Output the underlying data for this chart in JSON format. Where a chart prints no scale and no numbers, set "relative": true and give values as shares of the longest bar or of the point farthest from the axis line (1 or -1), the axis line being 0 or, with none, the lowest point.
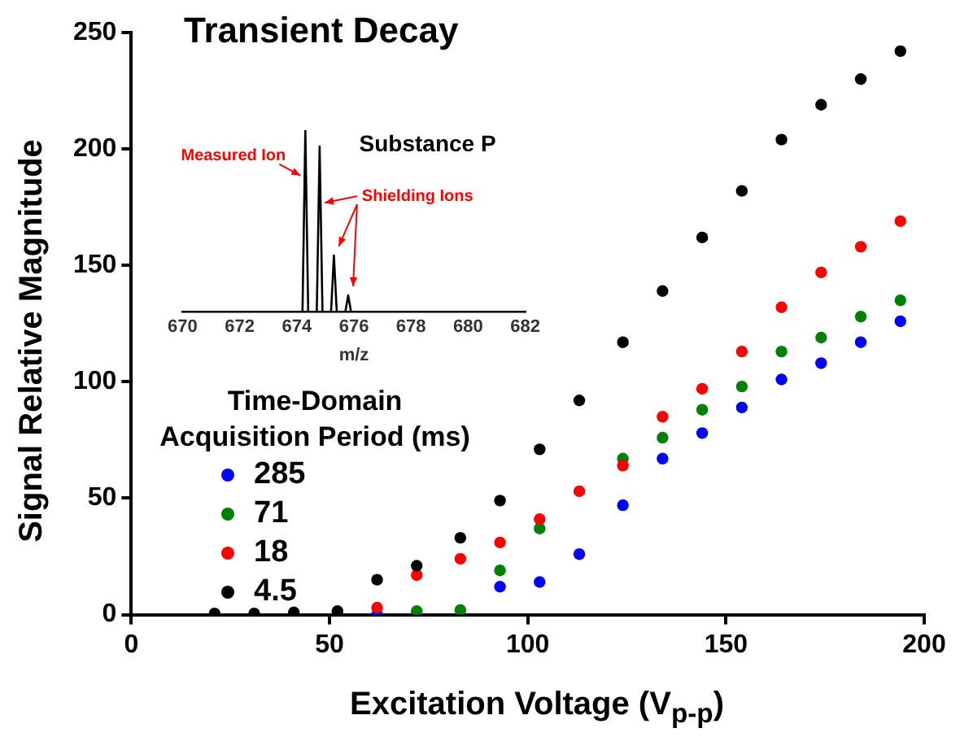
{
  "chart_data": [
    {
      "type": "scatter",
      "title": "Transient Decay",
      "xlabel": "Excitation Voltage (V$_{p-p}$)",
      "ylabel": "Signal Relative Magnitude",
      "legend_title": "Time-Domain Acquisition Period (ms)",
      "legend": "left",
      "marker": "circle",
      "grid": false,
      "x": [
        21,
        31,
        41,
        52,
        62,
        72,
        83,
        93,
        103,
        113,
        124,
        134,
        144,
        154,
        164,
        174,
        184,
        194
      ],
      "xlim": [
        0,
        200
      ],
      "xticks": [
        0,
        50,
        100,
        150,
        200
      ],
      "ylim": [
        0,
        250
      ],
      "yticks": [
        0,
        50,
        100,
        150,
        200,
        250
      ],
      "series": [
        {
          "name": "285",
          "color": "#0000ff",
          "values": [
            null,
            null,
            null,
            null,
            0,
            0,
            null,
            12,
            14,
            26,
            47,
            67,
            78,
            89,
            101,
            108,
            117,
            126
          ]
        },
        {
          "name": "71",
          "color": "#008000",
          "values": [
            null,
            null,
            null,
            null,
            null,
            1.5,
            2,
            19,
            37,
            null,
            67,
            76,
            88,
            98,
            113,
            119,
            128,
            135
          ]
        },
        {
          "name": "18",
          "color": "#ff0000",
          "values": [
            null,
            null,
            null,
            null,
            3,
            17,
            24,
            31,
            41,
            53,
            64,
            85,
            97,
            113,
            132,
            147,
            158,
            169
          ]
        },
        {
          "name": "4.5",
          "color": "#000000",
          "values": [
            0.5,
            0.5,
            1,
            1.5,
            15,
            21,
            33,
            49,
            71,
            92,
            117,
            139,
            162,
            182,
            204,
            219,
            230,
            242
          ]
        }
      ]
    },
    {
      "type": "line",
      "title": "Substance P",
      "xlabel": "m/z",
      "relative": true,
      "tick_labels": "x",
      "marker": "none",
      "grid": false,
      "legend": false,
      "xlim": [
        670,
        682
      ],
      "xticks": [
        670,
        672,
        674,
        676,
        678,
        680,
        682
      ],
      "series": [
        {
          "color": "#000000",
          "x": [
            670,
            674.2,
            674.3,
            674.4,
            674.7,
            674.8,
            674.9,
            675.2,
            675.3,
            675.4,
            675.7,
            675.8,
            675.9,
            682
          ],
          "values": [
            0,
            0,
            1,
            0,
            0,
            0.91,
            0,
            0,
            0.31,
            0,
            0,
            0.09,
            0,
            0
          ]
        }
      ],
      "annotations": [
        {
          "text": "Measured Ion",
          "x": 674.3,
          "y": 0.75
        },
        {
          "text": "Shielding Ions",
          "x": 674.8,
          "y": 0.6
        }
      ]
    }
  ]
}
